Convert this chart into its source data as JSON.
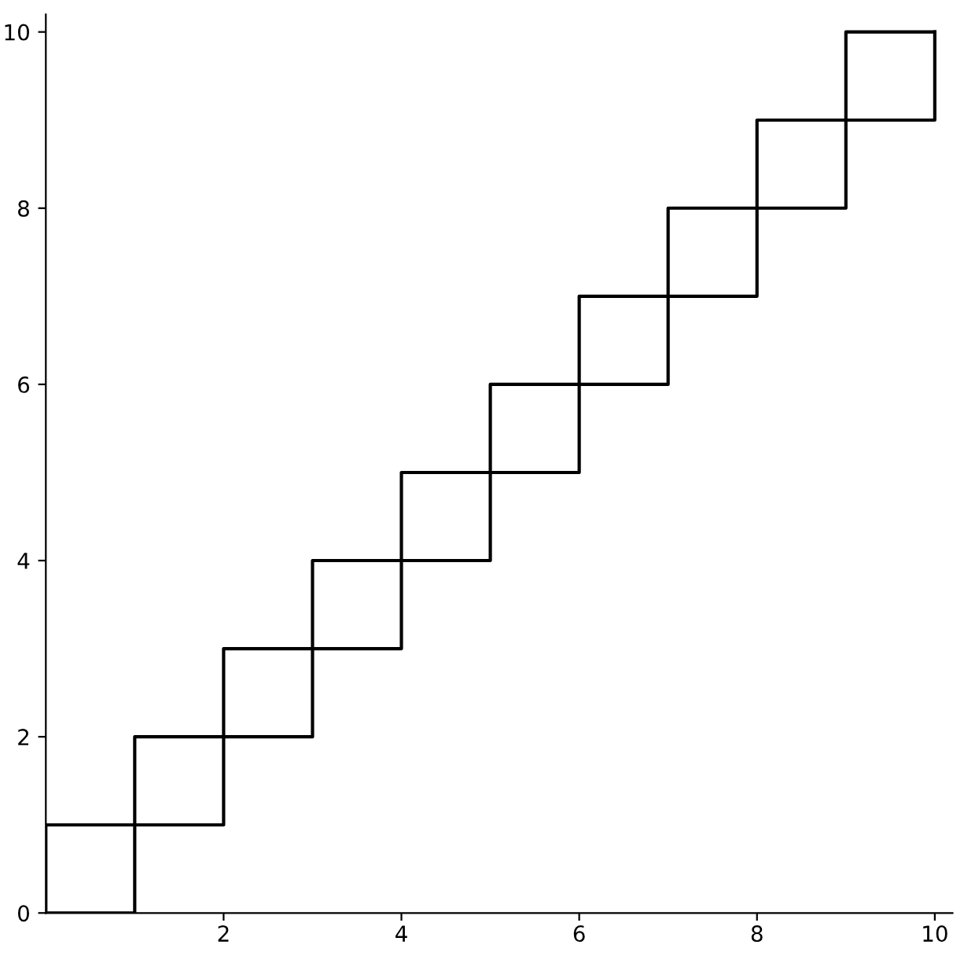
{
  "chart_data": {
    "type": "line",
    "xlim": [
      0,
      10.2
    ],
    "ylim": [
      0,
      10.2
    ],
    "xticks": [
      2,
      4,
      6,
      8,
      10
    ],
    "yticks": [
      0,
      2,
      4,
      6,
      8,
      10
    ],
    "grid": false,
    "legend": false,
    "marker": "none",
    "line_style": "solid",
    "series": [
      {
        "color": "#000000",
        "x": [
          0,
          0,
          1,
          1,
          2,
          2,
          3,
          3,
          4,
          4,
          5,
          5,
          6,
          6,
          7,
          7,
          8,
          8,
          9,
          9,
          10
        ],
        "values": [
          0,
          1,
          1,
          2,
          2,
          3,
          3,
          4,
          4,
          5,
          5,
          6,
          6,
          7,
          7,
          8,
          8,
          9,
          9,
          10,
          10
        ]
      },
      {
        "color": "#000000",
        "x": [
          0,
          1,
          1,
          2,
          2,
          3,
          3,
          4,
          4,
          5,
          5,
          6,
          6,
          7,
          7,
          8,
          8,
          9,
          9,
          10,
          10
        ],
        "values": [
          0,
          0,
          1,
          1,
          2,
          2,
          3,
          3,
          4,
          4,
          5,
          5,
          6,
          6,
          7,
          7,
          8,
          8,
          9,
          9,
          10
        ]
      }
    ]
  }
}
